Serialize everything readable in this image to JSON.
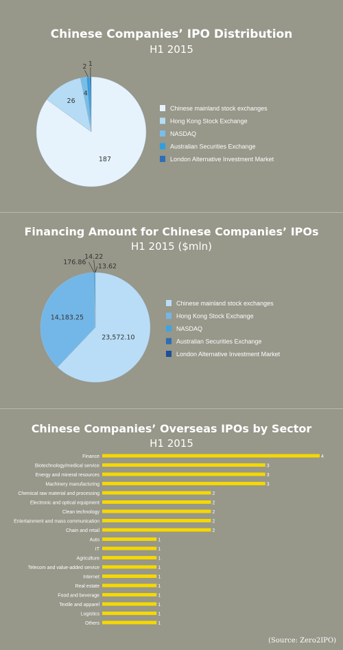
{
  "chart_data": [
    {
      "type": "pie",
      "title": "Chinese Companies’ IPO Distribution",
      "subtitle": "H1 2015",
      "categories": [
        "Chinese mainland stock exchanges",
        "Hong Kong Stock Exchange",
        "NASDAQ",
        "Australian Securities Exchange",
        "London Alternative Investment Market"
      ],
      "values": [
        187,
        26,
        4,
        2,
        1
      ],
      "labels": [
        "187",
        "26",
        "4",
        "2",
        "1"
      ],
      "colors": [
        "#e7f3fc",
        "#b6dcf5",
        "#78bde8",
        "#2f9fe0",
        "#2e6fb7"
      ],
      "legend_position": "right"
    },
    {
      "type": "pie",
      "title": "Financing Amount for Chinese Companies’ IPOs",
      "subtitle": "H1 2015 ($mln)",
      "categories": [
        "Chinese mainland stock exchanges",
        "Hong Kong Stock Exchange",
        "NASDAQ",
        "Australian Securities Exchange",
        "London Alternative Investment Market"
      ],
      "values": [
        23572.1,
        14183.25,
        176.86,
        14.22,
        13.62
      ],
      "labels": [
        "23,572.10",
        "14,183.25",
        "176.86",
        "14.22",
        "13.62"
      ],
      "colors": [
        "#b9ddf6",
        "#73b7e8",
        "#3fa4e3",
        "#2f6db4",
        "#1e4f9a"
      ],
      "legend_position": "right"
    },
    {
      "type": "bar",
      "orientation": "horizontal",
      "title": "Chinese Companies’ Overseas IPOs by Sector",
      "subtitle": "H1 2015",
      "categories": [
        "Finance",
        "Biotechnology/medical service",
        "Energy and mineral resources",
        "Machinery manufacturing",
        "Chemical raw material and processing",
        "Electronic and optical equipment",
        "Clean technology",
        "Entertainment and mass communication",
        "Chain and retail",
        "Auto",
        "IT",
        "Agriculture",
        "Telecom and value-added service",
        "Internet",
        "Real estate",
        "Food and beverage",
        "Textile and apparel",
        "Logistics",
        "Others"
      ],
      "values": [
        4,
        3,
        3,
        3,
        2,
        2,
        2,
        2,
        2,
        1,
        1,
        1,
        1,
        1,
        1,
        1,
        1,
        1,
        1
      ],
      "color": "#f5d800",
      "xlim": [
        0,
        4
      ]
    }
  ],
  "source": "(Source: Zero2IPO)"
}
